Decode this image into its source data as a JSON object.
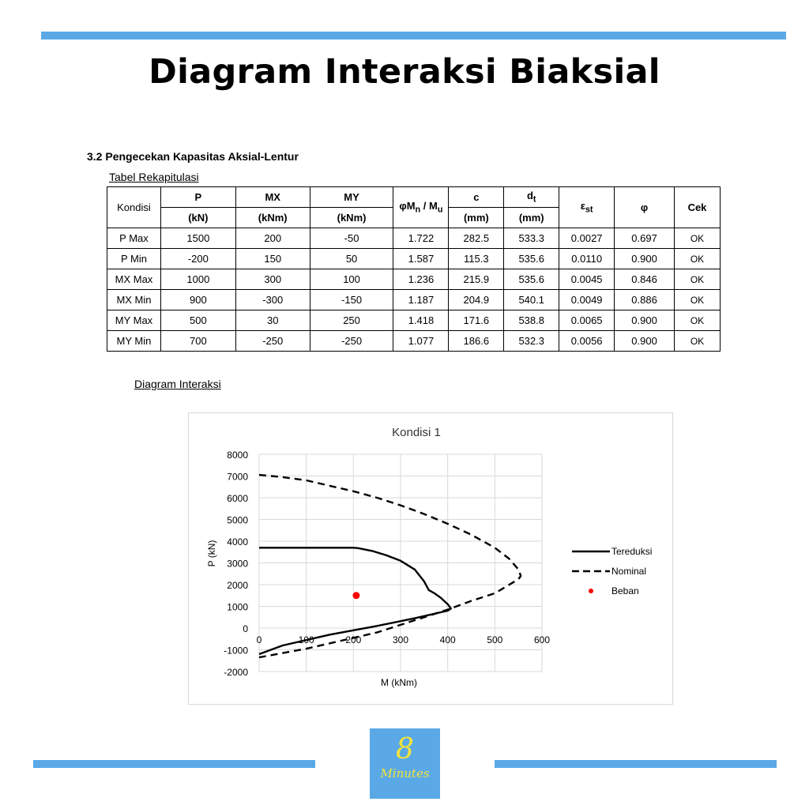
{
  "title": "Diagram Interaksi Biaksial",
  "section_heading": "3.2  Pengecekan Kapasitas Aksial-Lentur",
  "table_caption": "Tabel Rekapitulasi",
  "table": {
    "headers": {
      "kondisi": "Kondisi",
      "p": "P",
      "p_unit": "(kN)",
      "mx": "MX",
      "mx_unit": "(kNm)",
      "my": "MY",
      "my_unit": "(kNm)",
      "ratio_phi": "φM",
      "ratio_n": "n",
      "ratio_mid": " / M",
      "ratio_u": "u",
      "c": "c",
      "c_unit": "(mm)",
      "dt": "d",
      "dt_sub": "t",
      "dt_unit": "(mm)",
      "est": "ε",
      "est_sub": "st",
      "phi": "φ",
      "cek": "Cek"
    },
    "rows": [
      {
        "kondisi": "P Max",
        "p": "1500",
        "mx": "200",
        "my": "-50",
        "ratio": "1.722",
        "c": "282.5",
        "dt": "533.3",
        "est": "0.0027",
        "phi": "0.697",
        "cek": "OK"
      },
      {
        "kondisi": "P Min",
        "p": "-200",
        "mx": "150",
        "my": "50",
        "ratio": "1.587",
        "c": "115.3",
        "dt": "535.6",
        "est": "0.0110",
        "phi": "0.900",
        "cek": "OK"
      },
      {
        "kondisi": "MX Max",
        "p": "1000",
        "mx": "300",
        "my": "100",
        "ratio": "1.236",
        "c": "215.9",
        "dt": "535.6",
        "est": "0.0045",
        "phi": "0.846",
        "cek": "OK"
      },
      {
        "kondisi": "MX Min",
        "p": "900",
        "mx": "-300",
        "my": "-150",
        "ratio": "1.187",
        "c": "204.9",
        "dt": "540.1",
        "est": "0.0049",
        "phi": "0.886",
        "cek": "OK"
      },
      {
        "kondisi": "MY Max",
        "p": "500",
        "mx": "30",
        "my": "250",
        "ratio": "1.418",
        "c": "171.6",
        "dt": "538.8",
        "est": "0.0065",
        "phi": "0.900",
        "cek": "OK"
      },
      {
        "kondisi": "MY Min",
        "p": "700",
        "mx": "-250",
        "my": "-250",
        "ratio": "1.077",
        "c": "186.6",
        "dt": "532.3",
        "est": "0.0056",
        "phi": "0.900",
        "cek": "OK"
      }
    ]
  },
  "diagram_caption": "Diagram Interaksi",
  "chart_data": {
    "type": "line",
    "title": "Kondisi 1",
    "xlabel": "M (kNm)",
    "ylabel": "P (kN)",
    "xlim": [
      0,
      600
    ],
    "ylim": [
      -2000,
      8000
    ],
    "x_ticks": [
      0,
      100,
      200,
      300,
      400,
      500,
      600
    ],
    "y_ticks": [
      8000,
      7000,
      6000,
      5000,
      4000,
      3000,
      2000,
      1000,
      0,
      -1000,
      -2000
    ],
    "grid": true,
    "legend_position": "right",
    "series": [
      {
        "name": "Tereduksi",
        "style": "solid",
        "color": "#000000",
        "points": [
          [
            0,
            3700
          ],
          [
            200,
            3700
          ],
          [
            210,
            3680
          ],
          [
            240,
            3550
          ],
          [
            270,
            3350
          ],
          [
            300,
            3100
          ],
          [
            330,
            2700
          ],
          [
            350,
            2150
          ],
          [
            360,
            1750
          ],
          [
            372,
            1600
          ],
          [
            385,
            1400
          ],
          [
            400,
            1100
          ],
          [
            407,
            900
          ],
          [
            400,
            800
          ],
          [
            330,
            450
          ],
          [
            250,
            100
          ],
          [
            150,
            -300
          ],
          [
            50,
            -800
          ],
          [
            0,
            -1200
          ]
        ]
      },
      {
        "name": "Nominal",
        "style": "dashed",
        "color": "#000000",
        "points": [
          [
            0,
            7050
          ],
          [
            50,
            6950
          ],
          [
            100,
            6800
          ],
          [
            150,
            6550
          ],
          [
            200,
            6300
          ],
          [
            250,
            6000
          ],
          [
            300,
            5650
          ],
          [
            350,
            5250
          ],
          [
            400,
            4800
          ],
          [
            450,
            4300
          ],
          [
            500,
            3700
          ],
          [
            530,
            3200
          ],
          [
            550,
            2700
          ],
          [
            555,
            2400
          ],
          [
            550,
            2250
          ],
          [
            500,
            1600
          ],
          [
            450,
            1250
          ],
          [
            400,
            850
          ],
          [
            350,
            500
          ],
          [
            300,
            150
          ],
          [
            250,
            -200
          ],
          [
            200,
            -450
          ],
          [
            150,
            -700
          ],
          [
            100,
            -950
          ],
          [
            50,
            -1150
          ],
          [
            0,
            -1350
          ]
        ]
      },
      {
        "name": "Beban",
        "style": "marker",
        "color": "#ff0000",
        "points": [
          [
            206,
            1500
          ]
        ]
      }
    ]
  },
  "logo": {
    "number": "8",
    "word": "Minutes"
  },
  "colors": {
    "accent": "#5aa9e6",
    "logo_text": "#f6e33a",
    "load_point": "#ff0000"
  }
}
